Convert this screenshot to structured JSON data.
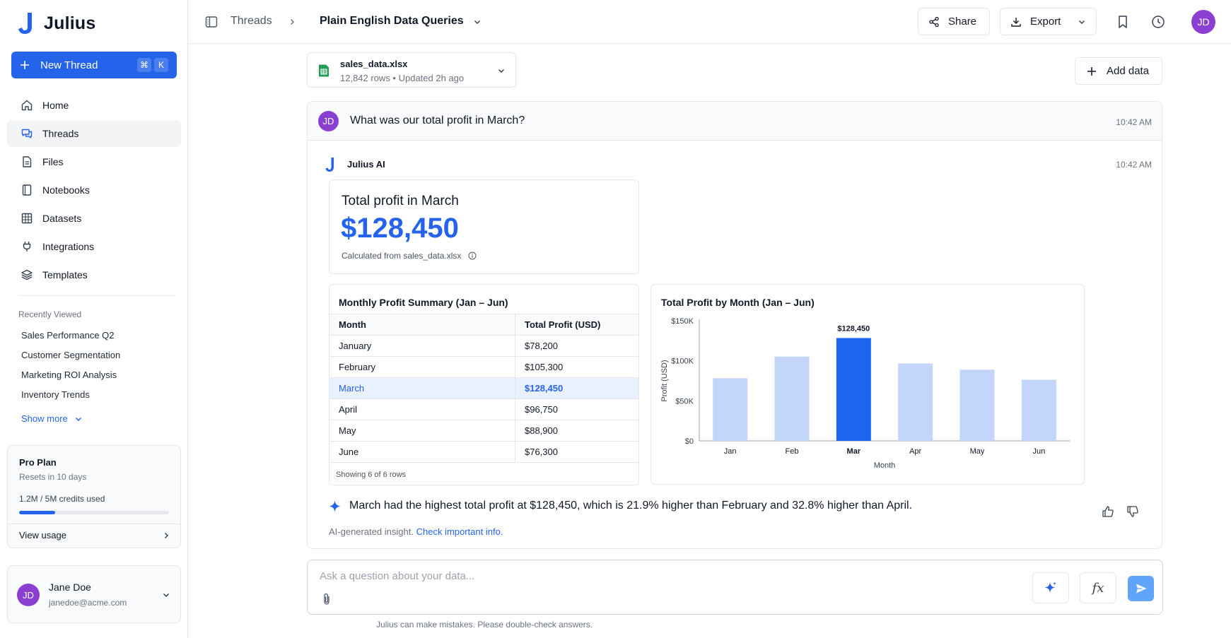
{
  "app": {
    "name": "Julius"
  },
  "sidebar": {
    "new_thread_label": "New Thread",
    "shortcut": [
      "⌘",
      "K"
    ],
    "nav": [
      {
        "label": "Home",
        "icon": "home-icon"
      },
      {
        "label": "Threads",
        "icon": "chat-icon",
        "active": true
      },
      {
        "label": "Files",
        "icon": "file-icon"
      },
      {
        "label": "Notebooks",
        "icon": "notebook-icon"
      },
      {
        "label": "Datasets",
        "icon": "table-icon"
      },
      {
        "label": "Integrations",
        "icon": "plug-icon"
      },
      {
        "label": "Templates",
        "icon": "layers-icon"
      }
    ],
    "recent_heading": "Recently Viewed",
    "recent": [
      "Sales Performance Q2",
      "Customer Segmentation",
      "Marketing ROI Analysis",
      "Inventory Trends"
    ],
    "show_more": "Show more",
    "plan": {
      "name": "Pro Plan",
      "resets": "Resets in 10 days",
      "credits": "1.2M / 5M credits used",
      "usage_fraction": 0.24,
      "view_usage": "View usage"
    },
    "user": {
      "initials": "JD",
      "name": "Jane Doe",
      "email": "janedoe@acme.com"
    }
  },
  "header": {
    "breadcrumb_root": "Threads",
    "thread_title": "Plain English Data Queries",
    "share_label": "Share",
    "export_label": "Export",
    "avatar_initials": "JD"
  },
  "dataset": {
    "file_name": "sales_data.xlsx",
    "meta": "12,842 rows  •  Updated 2h ago",
    "add_data_label": "Add data"
  },
  "conversation": {
    "question": {
      "initials": "JD",
      "text": "What was our total profit in March?",
      "time": "10:42 AM"
    },
    "answer": {
      "author": "Julius AI",
      "time": "10:42 AM",
      "kpi": {
        "title": "Total profit in March",
        "value": "$128,450",
        "source": "Calculated from sales_data.xlsx"
      },
      "table": {
        "title": "Monthly Profit Summary (Jan – Jun)",
        "columns": [
          "Month",
          "Total Profit (USD)"
        ],
        "rows": [
          [
            "January",
            "$78,200"
          ],
          [
            "February",
            "$105,300"
          ],
          [
            "March",
            "$128,450"
          ],
          [
            "April",
            "$96,750"
          ],
          [
            "May",
            "$88,900"
          ],
          [
            "June",
            "$76,300"
          ]
        ],
        "highlight_row": 2,
        "footer": "Showing 6 of 6 rows"
      },
      "insight": "March had the highest total profit at $128,450, which is 21.9% higher than February and 32.8% higher than April.",
      "disclaimer_prefix": "AI-generated insight.",
      "disclaimer_link": "Check important info."
    }
  },
  "chart_data": {
    "type": "bar",
    "title": "Total Profit by Month (Jan – Jun)",
    "xlabel": "Month",
    "ylabel": "Profit (USD)",
    "categories": [
      "Jan",
      "Feb",
      "Mar",
      "Apr",
      "May",
      "Jun"
    ],
    "values": [
      78200,
      105300,
      128450,
      96750,
      88900,
      76300
    ],
    "ylim": [
      0,
      150000
    ],
    "yticks": [
      0,
      50000,
      100000,
      150000
    ],
    "ytick_labels": [
      "$0",
      "$50K",
      "$100K",
      "$150K"
    ],
    "highlight_index": 2,
    "highlight_label": "$128,450",
    "colors": {
      "bar": "#c3d5fb",
      "highlight": "#1d64f0"
    },
    "grid": false
  },
  "composer": {
    "placeholder": "Ask a question about your data...",
    "fx_label": "fx",
    "footer": "Julius can make mistakes. Please double-check answers."
  },
  "colors": {
    "accent": "#2563eb",
    "avatar": "#8b3fd1"
  }
}
